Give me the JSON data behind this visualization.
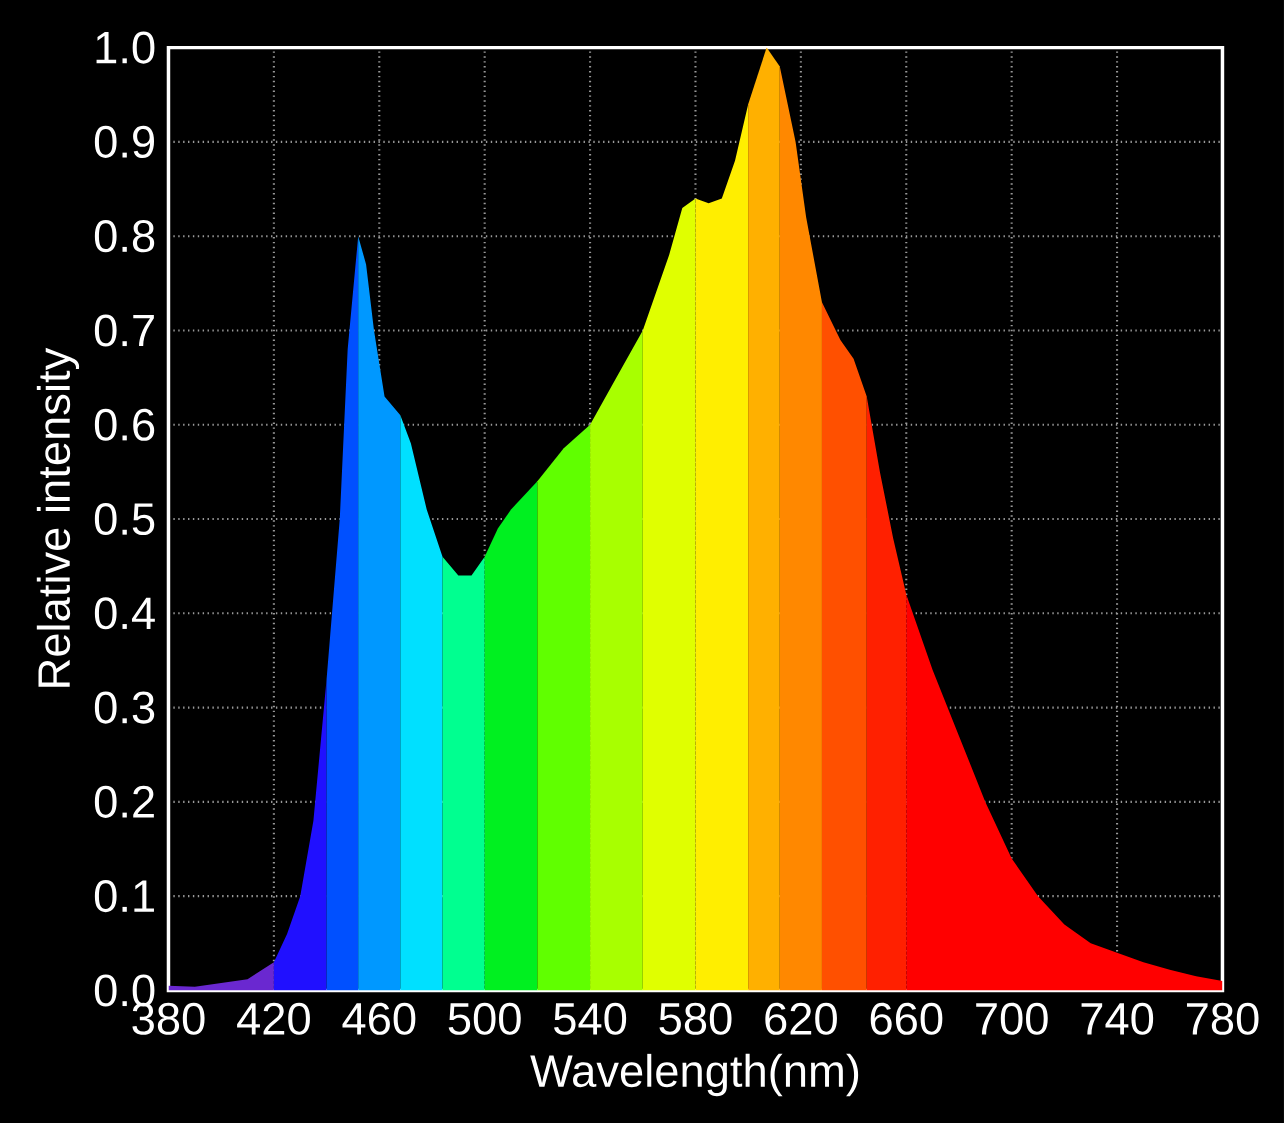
{
  "chart_data": {
    "type": "area",
    "xlabel": "Wavelength(nm)",
    "ylabel": "Relative intensity",
    "series": [
      {
        "color": "#6a28d0",
        "x": [
          380,
          390,
          400,
          410,
          420
        ],
        "values": [
          0.005,
          0.004,
          0.008,
          0.012,
          0.03
        ]
      },
      {
        "color": "#2010ff",
        "x": [
          420,
          425,
          430,
          435,
          440
        ],
        "values": [
          0.03,
          0.06,
          0.1,
          0.18,
          0.33
        ]
      },
      {
        "color": "#0050ff",
        "x": [
          440,
          445,
          448,
          452
        ],
        "values": [
          0.33,
          0.5,
          0.68,
          0.8
        ]
      },
      {
        "color": "#0098ff",
        "x": [
          452,
          455,
          458,
          462,
          468
        ],
        "values": [
          0.8,
          0.77,
          0.7,
          0.63,
          0.61
        ]
      },
      {
        "color": "#00e0ff",
        "x": [
          468,
          472,
          478,
          484
        ],
        "values": [
          0.61,
          0.58,
          0.51,
          0.46
        ]
      },
      {
        "color": "#00ff90",
        "x": [
          484,
          490,
          495,
          500
        ],
        "values": [
          0.46,
          0.44,
          0.44,
          0.46
        ]
      },
      {
        "color": "#00f020",
        "x": [
          500,
          505,
          510,
          520
        ],
        "values": [
          0.46,
          0.49,
          0.51,
          0.54
        ]
      },
      {
        "color": "#60ff00",
        "x": [
          520,
          530,
          540
        ],
        "values": [
          0.54,
          0.575,
          0.6
        ]
      },
      {
        "color": "#a8ff00",
        "x": [
          540,
          550,
          560
        ],
        "values": [
          0.6,
          0.65,
          0.7
        ]
      },
      {
        "color": "#e0ff00",
        "x": [
          560,
          570,
          575,
          580
        ],
        "values": [
          0.7,
          0.78,
          0.83,
          0.84
        ]
      },
      {
        "color": "#ffee00",
        "x": [
          580,
          585,
          590,
          595,
          600
        ],
        "values": [
          0.84,
          0.835,
          0.84,
          0.88,
          0.94
        ]
      },
      {
        "color": "#ffb000",
        "x": [
          600,
          607,
          612
        ],
        "values": [
          0.94,
          1.0,
          0.98
        ]
      },
      {
        "color": "#ff8800",
        "x": [
          612,
          618,
          622,
          628
        ],
        "values": [
          0.98,
          0.9,
          0.82,
          0.73
        ]
      },
      {
        "color": "#ff5000",
        "x": [
          628,
          635,
          640,
          645
        ],
        "values": [
          0.73,
          0.69,
          0.67,
          0.63
        ]
      },
      {
        "color": "#ff2000",
        "x": [
          645,
          650,
          655,
          660
        ],
        "values": [
          0.63,
          0.55,
          0.48,
          0.42
        ]
      },
      {
        "color": "#ff0000",
        "x": [
          660,
          670,
          680,
          690,
          700,
          710,
          720,
          730,
          740,
          750,
          760,
          770,
          780
        ],
        "values": [
          0.42,
          0.34,
          0.27,
          0.2,
          0.14,
          0.1,
          0.07,
          0.05,
          0.04,
          0.03,
          0.022,
          0.015,
          0.01
        ]
      }
    ],
    "xlim": [
      380,
      780
    ],
    "ylim": [
      0,
      1
    ],
    "xticks": [
      380,
      420,
      460,
      500,
      540,
      580,
      620,
      660,
      700,
      740,
      780
    ],
    "yticks": [
      {
        "value": 0,
        "label": "0.0"
      },
      0.1,
      0.2,
      0.3,
      0.4,
      0.5,
      0.6,
      0.7,
      0.8,
      0.9,
      {
        "value": 1,
        "label": "1.0"
      }
    ],
    "grid": true
  }
}
